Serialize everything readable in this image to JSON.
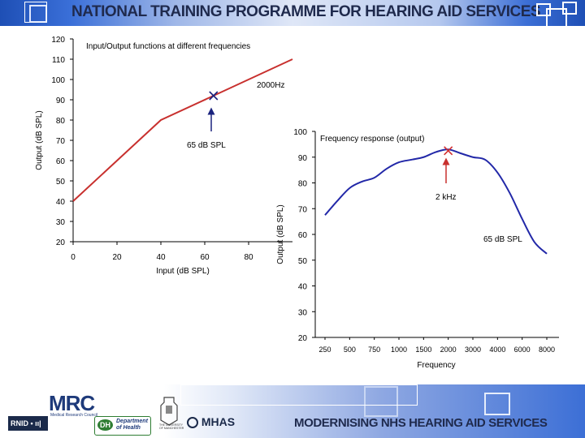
{
  "header": {
    "title": "NATIONAL TRAINING PROGRAMME FOR  HEARING AID SERVICES"
  },
  "footer": {
    "title": "MODERNISING NHS HEARING AID SERVICES",
    "logos": {
      "mrc": "MRC",
      "mrc_sub": "Medical Research Council",
      "rnid": "RNID",
      "rnid_mark": "• ıı|",
      "dh_mark": "DH",
      "dh_text": "Department of Health",
      "uom": "THE UNIVERSITY OF MANCHESTER",
      "mhas": "MHAS"
    }
  },
  "colors": {
    "io_line": "#c8302e",
    "freq_line": "#2228a8",
    "arrow": "#1a237e",
    "marker_io": "#1a237e",
    "marker_freq": "#d32f2f",
    "header_blue": "#1e4fb5"
  },
  "chart_data": [
    {
      "type": "line",
      "title": "Input/Output functions at different frequencies",
      "xlabel": "Input (dB SPL)",
      "ylabel": "Output (dB SPL)",
      "xlim": [
        0,
        100
      ],
      "ylim": [
        20,
        120
      ],
      "x_ticks": [
        "0",
        "20",
        "40",
        "60",
        "80"
      ],
      "y_ticks": [
        "20",
        "30",
        "40",
        "50",
        "60",
        "70",
        "80",
        "90",
        "100",
        "110",
        "120"
      ],
      "series": [
        {
          "name": "2000Hz",
          "x": [
            0,
            40,
            100
          ],
          "y": [
            40,
            80,
            110
          ]
        }
      ],
      "marker": {
        "x": 64,
        "y": 92
      },
      "annotations": {
        "series_label": "2000Hz",
        "level_label": "65 dB SPL"
      }
    },
    {
      "type": "line",
      "title": "Frequency response (output)",
      "xlabel": "Frequency",
      "ylabel": "Output (dB SPL)",
      "ylim": [
        20,
        100
      ],
      "categories": [
        "250",
        "500",
        "750",
        "1000",
        "1500",
        "2000",
        "3000",
        "4000",
        "6000",
        "8000"
      ],
      "y_ticks": [
        "20",
        "30",
        "40",
        "50",
        "60",
        "70",
        "80",
        "90",
        "100"
      ],
      "series": [
        {
          "name": "Frequency response (output)",
          "x": [
            0,
            0.5,
            1,
            1.5,
            2,
            2.5,
            3,
            3.5,
            4,
            4.5,
            5,
            5.5,
            6,
            6.5,
            7,
            7.5,
            8,
            8.5,
            9
          ],
          "y": [
            67.5,
            73,
            78,
            80.5,
            82,
            85.5,
            88,
            89,
            90,
            92,
            93,
            91.5,
            90,
            89,
            84,
            76,
            66,
            57,
            52.5
          ]
        }
      ],
      "marker": {
        "x": 5,
        "y": 92.5
      },
      "annotations": {
        "marker_label": "2 kHz",
        "level_label": "65 dB SPL"
      }
    }
  ]
}
